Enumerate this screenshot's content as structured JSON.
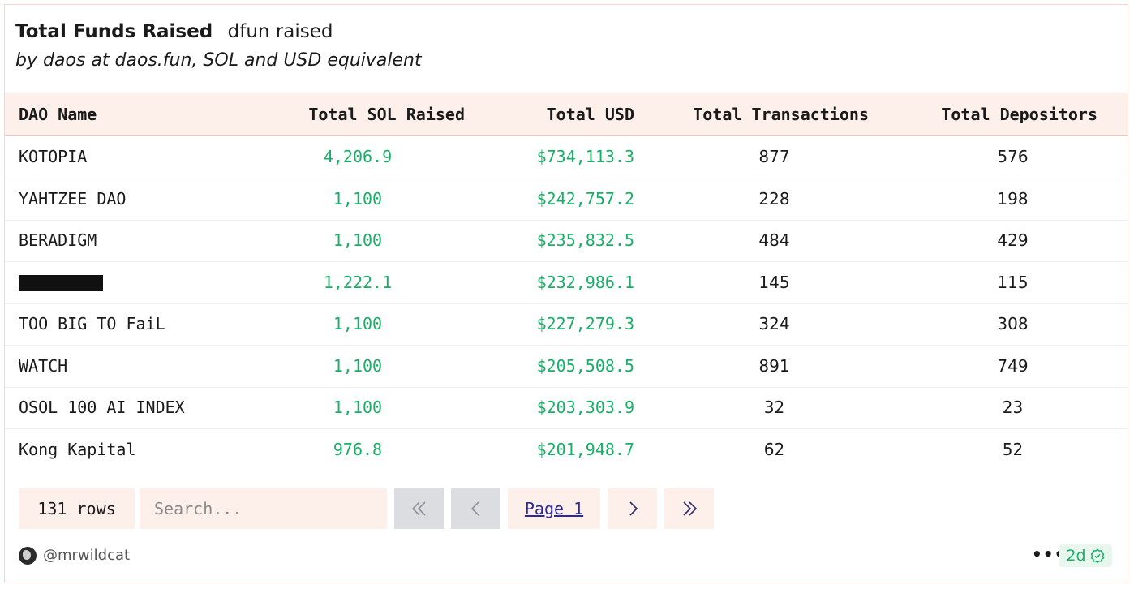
{
  "header": {
    "title": "Total Funds Raised",
    "subtitle": "dfun raised",
    "description": "by daos at daos.fun, SOL and USD equivalent"
  },
  "table": {
    "columns": [
      "DAO Name",
      "Total SOL Raised",
      "Total USD",
      "Total Transactions",
      "Total Depositors"
    ],
    "rows": [
      {
        "name": "KOTOPIA",
        "sol": "4,206.9",
        "usd": "$734,113.3",
        "tx": "877",
        "dep": "576",
        "redacted": false
      },
      {
        "name": "YAHTZEE DAO",
        "sol": "1,100",
        "usd": "$242,757.2",
        "tx": "228",
        "dep": "198",
        "redacted": false
      },
      {
        "name": "BERADIGM",
        "sol": "1,100",
        "usd": "$235,832.5",
        "tx": "484",
        "dep": "429",
        "redacted": false
      },
      {
        "name": "",
        "sol": "1,222.1",
        "usd": "$232,986.1",
        "tx": "145",
        "dep": "115",
        "redacted": true
      },
      {
        "name": "TOO BIG TO FaiL",
        "sol": "1,100",
        "usd": "$227,279.3",
        "tx": "324",
        "dep": "308",
        "redacted": false
      },
      {
        "name": "WATCH",
        "sol": "1,100",
        "usd": "$205,508.5",
        "tx": "891",
        "dep": "749",
        "redacted": false
      },
      {
        "name": "OSOL 100 AI INDEX",
        "sol": "1,100",
        "usd": "$203,303.9",
        "tx": "32",
        "dep": "23",
        "redacted": false
      },
      {
        "name": "Kong Kapital",
        "sol": "976.8",
        "usd": "$201,948.7",
        "tx": "62",
        "dep": "52",
        "redacted": false
      }
    ]
  },
  "pagination": {
    "rows_label": "131 rows",
    "search_placeholder": "Search...",
    "page_label": "Page 1",
    "icons": {
      "first": "double-chevron-left-icon",
      "prev": "chevron-left-icon",
      "next": "chevron-right-icon",
      "last": "double-chevron-right-icon"
    }
  },
  "footer": {
    "author": "@mrwildcat",
    "more": "•••",
    "age": "2d"
  },
  "colors": {
    "header_bg": "#fdefea",
    "positive_green": "#17b067",
    "disabled_btn": "#dcdde1",
    "border": "#f3d6cc"
  }
}
